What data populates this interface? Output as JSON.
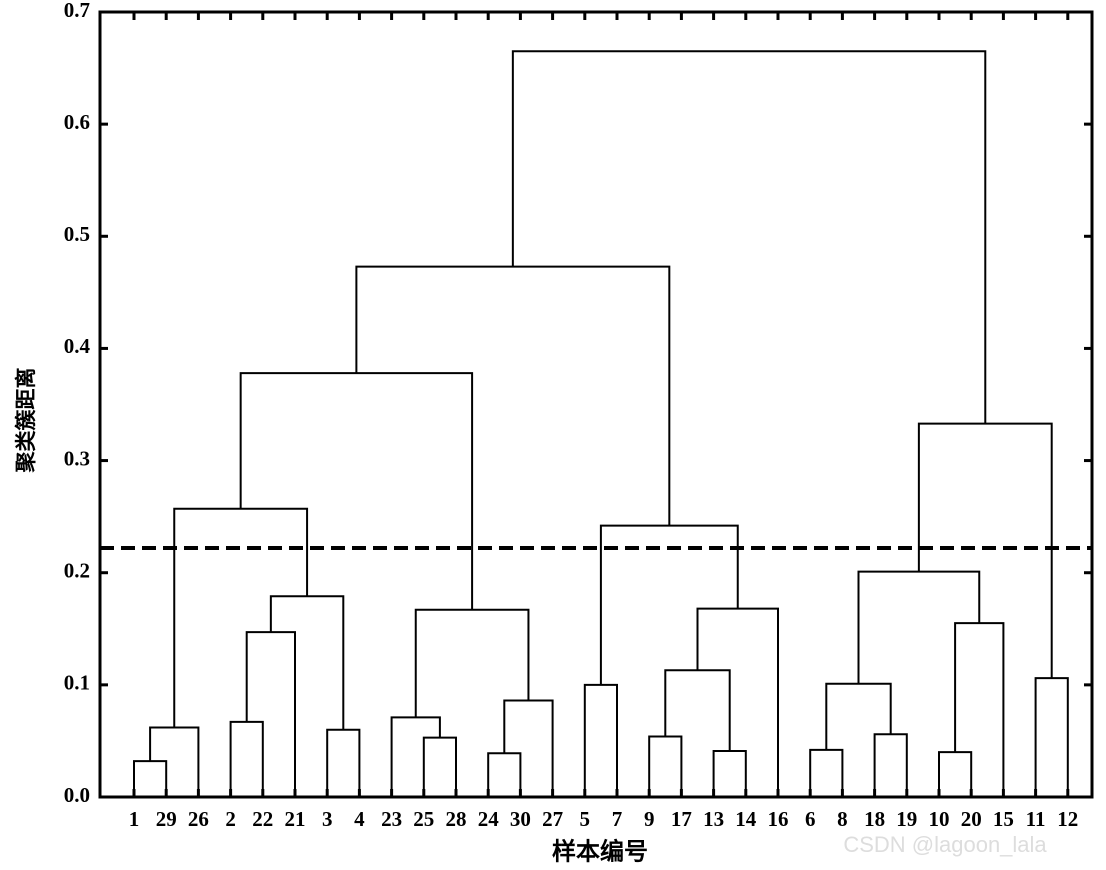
{
  "chart_data": {
    "type": "dendrogram",
    "ylabel": "聚类簇距离",
    "xlabel": "样本编号",
    "watermark": "CSDN @lagoon_lala",
    "ylim": [
      0,
      0.7
    ],
    "yticks": [
      {
        "value": 0,
        "label": "0.0"
      },
      0.1,
      0.2,
      0.3,
      0.4,
      0.5,
      0.6,
      0.7
    ],
    "threshold": 0.222,
    "color": "#000000",
    "tree": {
      "height": 0.665,
      "children": [
        {
          "height": 0.473,
          "children": [
            {
              "height": 0.378,
              "children": [
                {
                  "height": 0.257,
                  "children": [
                    {
                      "height": 0.062,
                      "children": [
                        {
                          "height": 0.032,
                          "children": [
                            "1",
                            "29"
                          ]
                        },
                        "26"
                      ]
                    },
                    {
                      "height": 0.179,
                      "children": [
                        {
                          "height": 0.147,
                          "children": [
                            {
                              "height": 0.067,
                              "children": [
                                "2",
                                "22"
                              ]
                            },
                            "21"
                          ]
                        },
                        {
                          "height": 0.06,
                          "children": [
                            "3",
                            "4"
                          ]
                        }
                      ]
                    }
                  ]
                },
                {
                  "height": 0.167,
                  "children": [
                    {
                      "height": 0.071,
                      "children": [
                        "23",
                        {
                          "height": 0.053,
                          "children": [
                            "25",
                            "28"
                          ]
                        }
                      ]
                    },
                    {
                      "height": 0.086,
                      "children": [
                        {
                          "height": 0.039,
                          "children": [
                            "24",
                            "30"
                          ]
                        },
                        "27"
                      ]
                    }
                  ]
                }
              ]
            },
            {
              "height": 0.242,
              "children": [
                {
                  "height": 0.1,
                  "children": [
                    "5",
                    "7"
                  ]
                },
                {
                  "height": 0.168,
                  "children": [
                    {
                      "height": 0.113,
                      "children": [
                        {
                          "height": 0.054,
                          "children": [
                            "9",
                            "17"
                          ]
                        },
                        {
                          "height": 0.041,
                          "children": [
                            "13",
                            "14"
                          ]
                        }
                      ]
                    },
                    "16"
                  ]
                }
              ]
            }
          ]
        },
        {
          "height": 0.333,
          "children": [
            {
              "height": 0.201,
              "children": [
                {
                  "height": 0.101,
                  "children": [
                    {
                      "height": 0.042,
                      "children": [
                        "6",
                        "8"
                      ]
                    },
                    {
                      "height": 0.056,
                      "children": [
                        "18",
                        "19"
                      ]
                    }
                  ]
                },
                {
                  "height": 0.155,
                  "children": [
                    {
                      "height": 0.04,
                      "children": [
                        "10",
                        "20"
                      ]
                    },
                    "15"
                  ]
                }
              ]
            },
            {
              "height": 0.106,
              "children": [
                "11",
                "12"
              ]
            }
          ]
        }
      ]
    }
  }
}
